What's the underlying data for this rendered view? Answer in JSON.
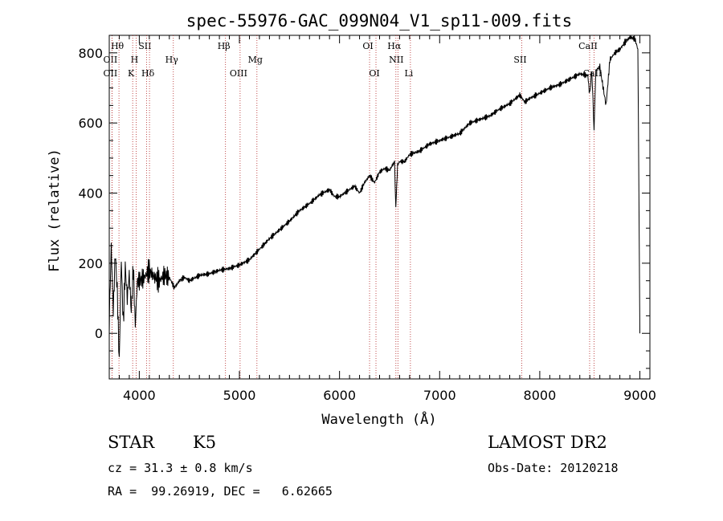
{
  "chart_data": {
    "type": "line",
    "title": "spec-55976-GAC_099N04_V1_sp11-009.fits",
    "xlabel": "Wavelength (Å)",
    "ylabel": "Flux (relative)",
    "xlim": [
      3700,
      9100
    ],
    "ylim": [
      -130,
      850
    ],
    "xticks": [
      4000,
      5000,
      6000,
      7000,
      8000,
      9000
    ],
    "yticks": [
      0,
      200,
      400,
      600,
      800
    ],
    "grid": false,
    "series": [
      {
        "x": [
          3700,
          3720,
          3740,
          3760,
          3780,
          3800,
          3820,
          3840,
          3860,
          3880,
          3900,
          3920,
          3940,
          3960,
          3980,
          4000,
          4050,
          4100,
          4150,
          4200,
          4250,
          4300,
          4350,
          4400,
          4450,
          4500,
          4600,
          4700,
          4800,
          4900,
          5000,
          5100,
          5200,
          5300,
          5400,
          5500,
          5600,
          5700,
          5800,
          5900,
          5950,
          6000,
          6050,
          6100,
          6150,
          6200,
          6250,
          6300,
          6350,
          6400,
          6450,
          6500,
          6550,
          6562,
          6580,
          6600,
          6650,
          6700,
          6800,
          6900,
          7000,
          7100,
          7200,
          7300,
          7400,
          7500,
          7600,
          7700,
          7800,
          7850,
          7900,
          8000,
          8100,
          8200,
          8300,
          8400,
          8480,
          8498,
          8520,
          8542,
          8560,
          8600,
          8662,
          8700,
          8750,
          8800,
          8850,
          8900,
          8950,
          8980,
          9000
        ],
        "values": [
          30,
          250,
          60,
          230,
          120,
          -80,
          210,
          30,
          190,
          100,
          170,
          60,
          190,
          20,
          150,
          150,
          160,
          180,
          160,
          150,
          165,
          160,
          130,
          150,
          160,
          150,
          165,
          170,
          180,
          185,
          195,
          210,
          240,
          270,
          295,
          320,
          350,
          370,
          395,
          410,
          390,
          390,
          400,
          410,
          420,
          400,
          430,
          450,
          430,
          460,
          470,
          465,
          490,
          360,
          480,
          490,
          490,
          510,
          520,
          540,
          550,
          560,
          570,
          600,
          610,
          620,
          640,
          655,
          680,
          660,
          670,
          685,
          700,
          710,
          725,
          740,
          735,
          680,
          750,
          580,
          750,
          760,
          650,
          780,
          800,
          810,
          830,
          845,
          840,
          810,
          0
        ]
      }
    ],
    "spectral_lines": [
      {
        "label": "Hθ",
        "x": 3797,
        "row": 1
      },
      {
        "label": "OII",
        "x": 3727,
        "row": 2
      },
      {
        "label": "OII",
        "x": 3727,
        "row": 3
      },
      {
        "label": "H",
        "x": 3968,
        "row": 2
      },
      {
        "label": "K",
        "x": 3934,
        "row": 3
      },
      {
        "label": "SII",
        "x": 4072,
        "row": 1
      },
      {
        "label": "Hδ",
        "x": 4102,
        "row": 3
      },
      {
        "label": "Hγ",
        "x": 4340,
        "row": 2
      },
      {
        "label": "Hβ",
        "x": 4861,
        "row": 1
      },
      {
        "label": "OIII",
        "x": 5007,
        "row": 3
      },
      {
        "label": "Mg",
        "x": 5175,
        "row": 2
      },
      {
        "label": "OI",
        "x": 6300,
        "row": 1
      },
      {
        "label": "OI",
        "x": 6364,
        "row": 3
      },
      {
        "label": "Hα",
        "x": 6563,
        "row": 1
      },
      {
        "label": "NII",
        "x": 6583,
        "row": 2
      },
      {
        "label": "Li",
        "x": 6708,
        "row": 3
      },
      {
        "label": "SII",
        "x": 7820,
        "row": 2
      },
      {
        "label": "CaII",
        "x": 8498,
        "row": 1
      },
      {
        "label": "CaII",
        "x": 8542,
        "row": 3
      }
    ]
  },
  "info": {
    "class": "STAR",
    "subclass": "K5",
    "survey": "LAMOST DR2",
    "redshift": "cz = 31.3 ± 0.8 km/s",
    "obs_date": "Obs-Date: 20120218",
    "coords": "RA =  99.26919, DEC =   6.62665"
  }
}
